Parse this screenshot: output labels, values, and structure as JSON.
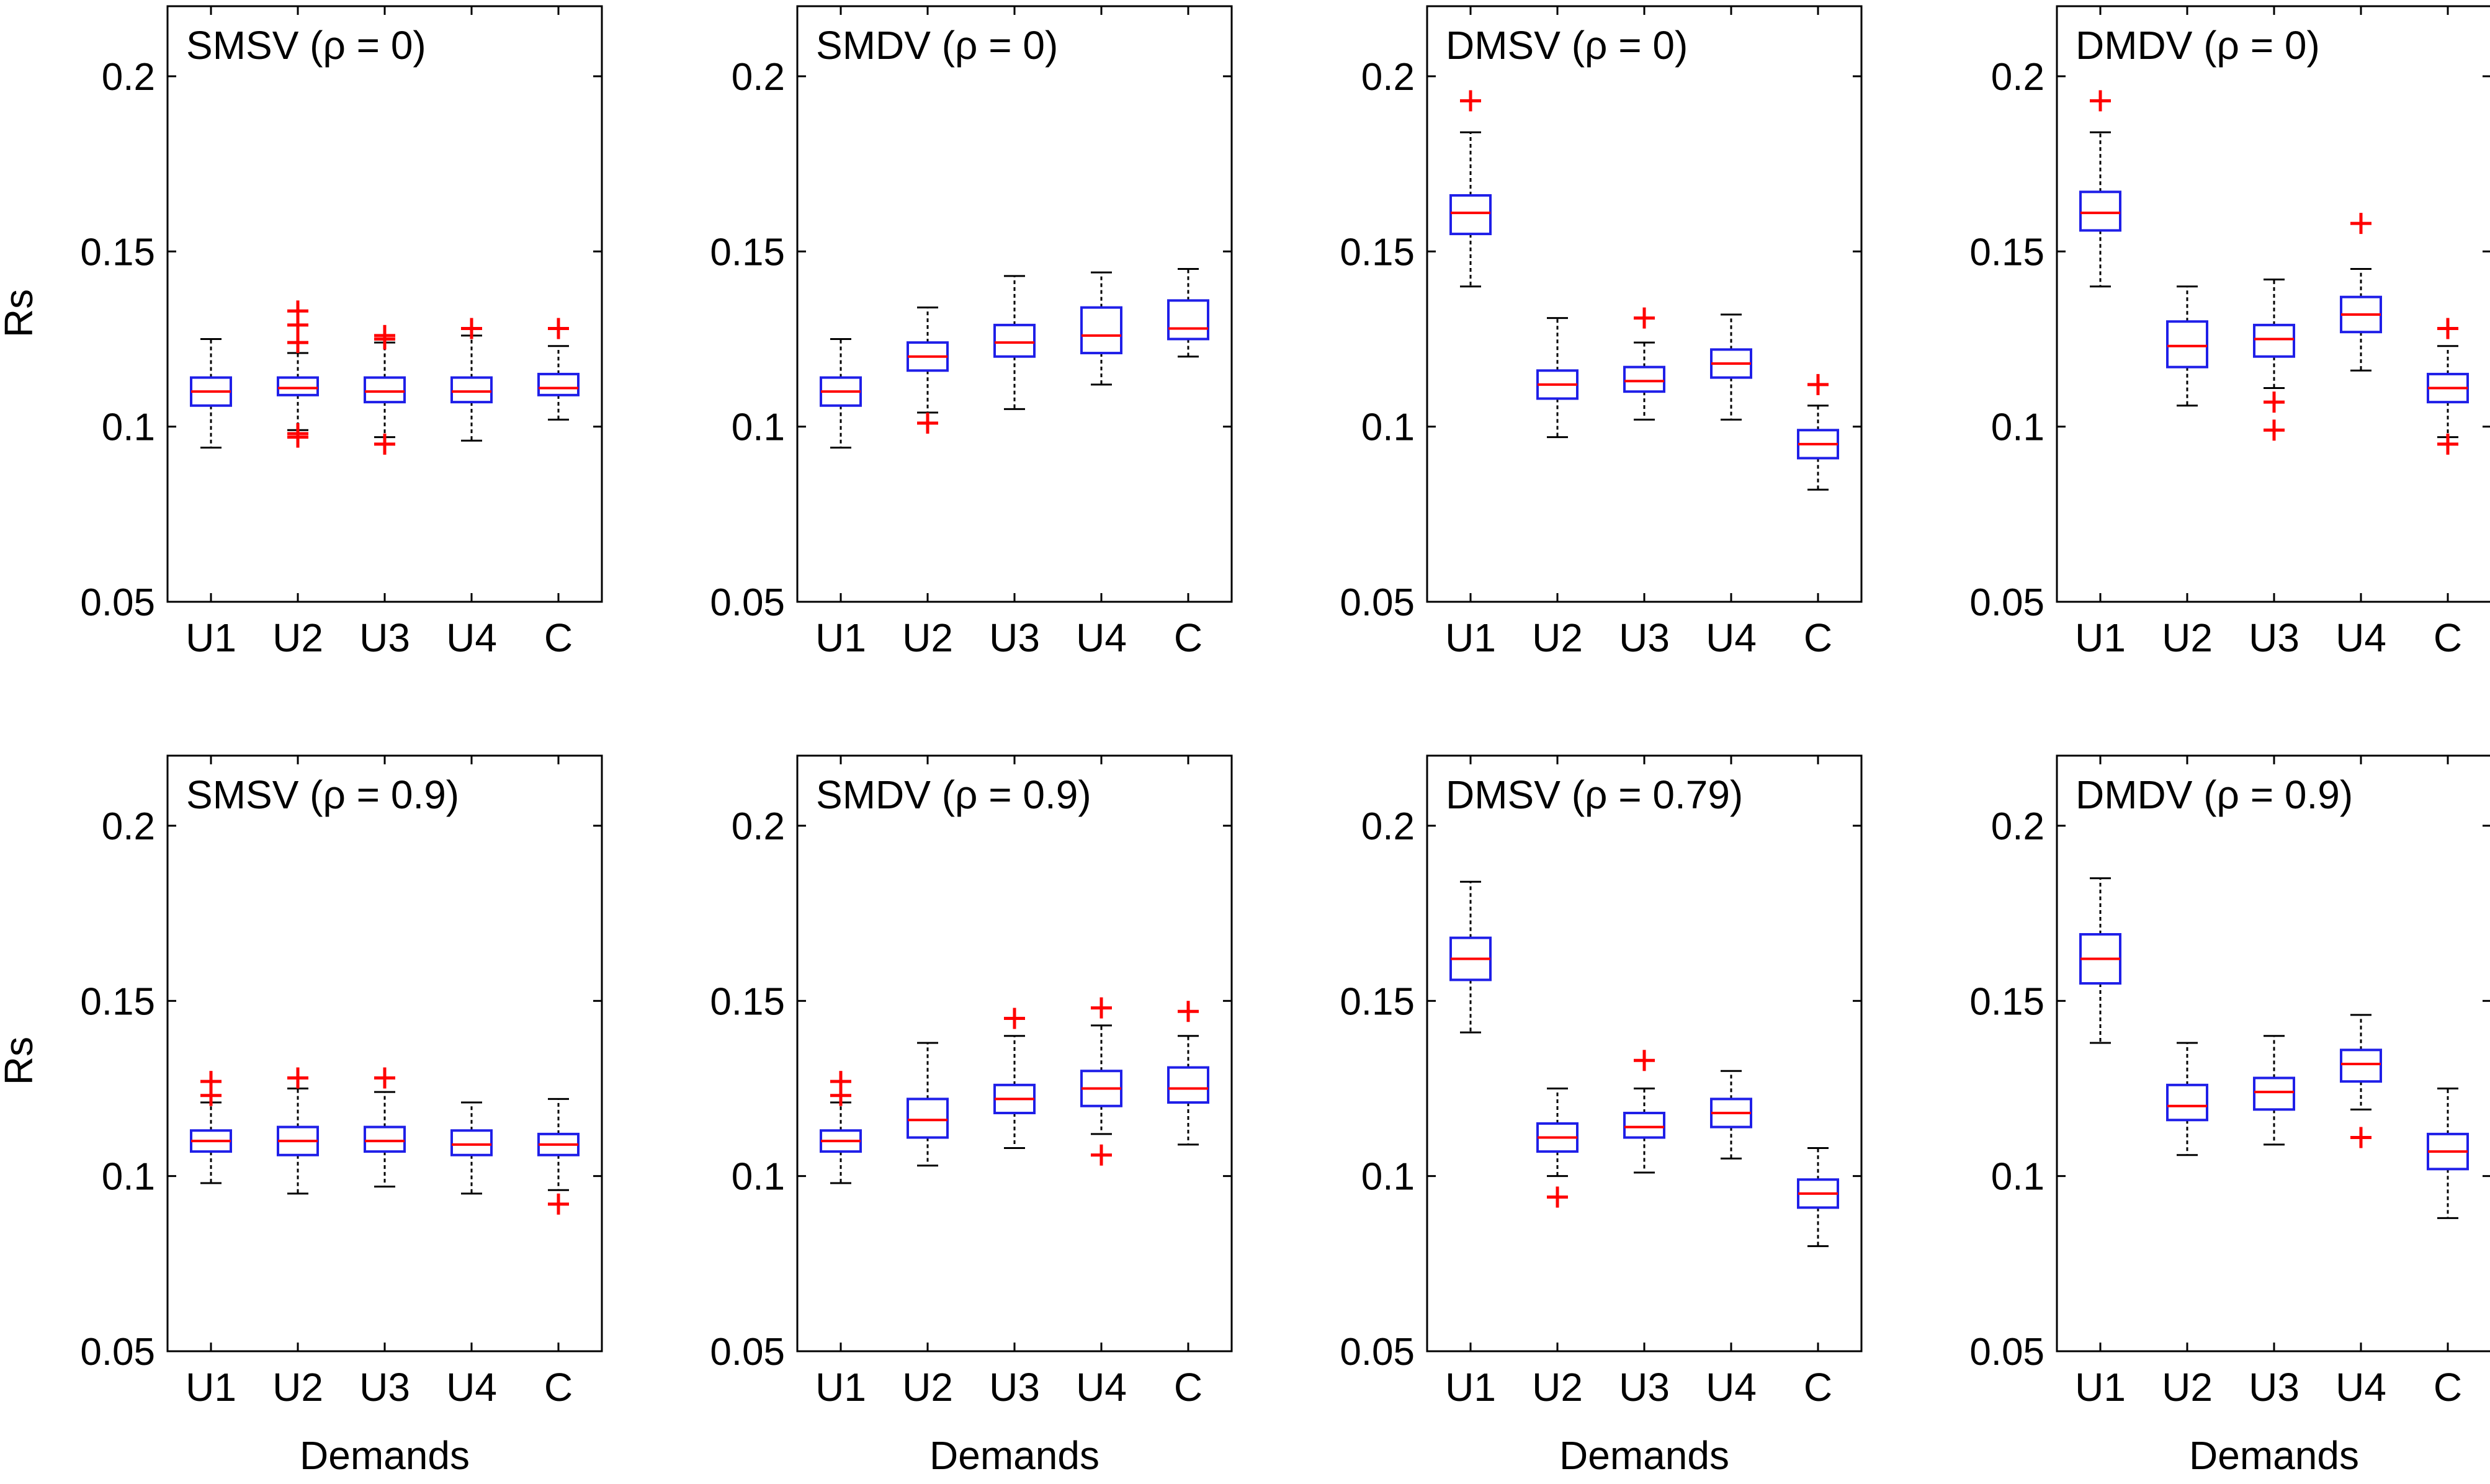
{
  "figure": {
    "y_axis_label": "Rs",
    "x_axis_label": "Demands"
  },
  "chart_data": [
    {
      "type": "boxplot",
      "title": "SMSV (ρ = 0)",
      "xlabel": "",
      "ylabel": "Rs",
      "ylim": [
        0.05,
        0.22
      ],
      "yticks": [
        "0.05",
        "0.1",
        "0.15",
        "0.2"
      ],
      "categories": [
        "U1",
        "U2",
        "U3",
        "U4",
        "C"
      ],
      "boxes": [
        {
          "cat": "U1",
          "lw": 0.094,
          "q1": 0.106,
          "med": 0.11,
          "q3": 0.114,
          "uw": 0.125,
          "outliers": []
        },
        {
          "cat": "U2",
          "lw": 0.099,
          "q1": 0.109,
          "med": 0.111,
          "q3": 0.114,
          "uw": 0.121,
          "outliers": [
            0.133,
            0.129,
            0.124,
            0.098,
            0.097
          ]
        },
        {
          "cat": "U3",
          "lw": 0.097,
          "q1": 0.107,
          "med": 0.11,
          "q3": 0.114,
          "uw": 0.124,
          "outliers": [
            0.126,
            0.125,
            0.095
          ]
        },
        {
          "cat": "U4",
          "lw": 0.096,
          "q1": 0.107,
          "med": 0.11,
          "q3": 0.114,
          "uw": 0.126,
          "outliers": [
            0.128
          ]
        },
        {
          "cat": "C",
          "lw": 0.102,
          "q1": 0.109,
          "med": 0.111,
          "q3": 0.115,
          "uw": 0.123,
          "outliers": [
            0.128
          ]
        }
      ]
    },
    {
      "type": "boxplot",
      "title": "SMDV (ρ = 0)",
      "xlabel": "",
      "ylabel": "",
      "ylim": [
        0.05,
        0.22
      ],
      "yticks": [
        "0.05",
        "0.1",
        "0.15",
        "0.2"
      ],
      "categories": [
        "U1",
        "U2",
        "U3",
        "U4",
        "C"
      ],
      "boxes": [
        {
          "cat": "U1",
          "lw": 0.094,
          "q1": 0.106,
          "med": 0.11,
          "q3": 0.114,
          "uw": 0.125,
          "outliers": []
        },
        {
          "cat": "U2",
          "lw": 0.104,
          "q1": 0.116,
          "med": 0.12,
          "q3": 0.124,
          "uw": 0.134,
          "outliers": [
            0.101
          ]
        },
        {
          "cat": "U3",
          "lw": 0.105,
          "q1": 0.12,
          "med": 0.124,
          "q3": 0.129,
          "uw": 0.143,
          "outliers": []
        },
        {
          "cat": "U4",
          "lw": 0.112,
          "q1": 0.121,
          "med": 0.126,
          "q3": 0.134,
          "uw": 0.144,
          "outliers": []
        },
        {
          "cat": "C",
          "lw": 0.12,
          "q1": 0.125,
          "med": 0.128,
          "q3": 0.136,
          "uw": 0.145,
          "outliers": []
        }
      ]
    },
    {
      "type": "boxplot",
      "title": "DMSV (ρ = 0)",
      "xlabel": "",
      "ylabel": "",
      "ylim": [
        0.05,
        0.22
      ],
      "yticks": [
        "0.05",
        "0.1",
        "0.15",
        "0.2"
      ],
      "categories": [
        "U1",
        "U2",
        "U3",
        "U4",
        "C"
      ],
      "boxes": [
        {
          "cat": "U1",
          "lw": 0.14,
          "q1": 0.155,
          "med": 0.161,
          "q3": 0.166,
          "uw": 0.184,
          "outliers": [
            0.193
          ]
        },
        {
          "cat": "U2",
          "lw": 0.097,
          "q1": 0.108,
          "med": 0.112,
          "q3": 0.116,
          "uw": 0.131,
          "outliers": []
        },
        {
          "cat": "U3",
          "lw": 0.102,
          "q1": 0.11,
          "med": 0.113,
          "q3": 0.117,
          "uw": 0.124,
          "outliers": [
            0.131
          ]
        },
        {
          "cat": "U4",
          "lw": 0.102,
          "q1": 0.114,
          "med": 0.118,
          "q3": 0.122,
          "uw": 0.132,
          "outliers": []
        },
        {
          "cat": "C",
          "lw": 0.082,
          "q1": 0.091,
          "med": 0.095,
          "q3": 0.099,
          "uw": 0.106,
          "outliers": [
            0.112
          ]
        }
      ]
    },
    {
      "type": "boxplot",
      "title": "DMDV (ρ = 0)",
      "xlabel": "",
      "ylabel": "",
      "ylim": [
        0.05,
        0.22
      ],
      "yticks": [
        "0.05",
        "0.1",
        "0.15",
        "0.2"
      ],
      "categories": [
        "U1",
        "U2",
        "U3",
        "U4",
        "C"
      ],
      "boxes": [
        {
          "cat": "U1",
          "lw": 0.14,
          "q1": 0.156,
          "med": 0.161,
          "q3": 0.167,
          "uw": 0.184,
          "outliers": [
            0.193
          ]
        },
        {
          "cat": "U2",
          "lw": 0.106,
          "q1": 0.117,
          "med": 0.123,
          "q3": 0.13,
          "uw": 0.14,
          "outliers": []
        },
        {
          "cat": "U3",
          "lw": 0.111,
          "q1": 0.12,
          "med": 0.125,
          "q3": 0.129,
          "uw": 0.142,
          "outliers": [
            0.107,
            0.099
          ]
        },
        {
          "cat": "U4",
          "lw": 0.116,
          "q1": 0.127,
          "med": 0.132,
          "q3": 0.137,
          "uw": 0.145,
          "outliers": [
            0.158
          ]
        },
        {
          "cat": "C",
          "lw": 0.097,
          "q1": 0.107,
          "med": 0.111,
          "q3": 0.115,
          "uw": 0.123,
          "outliers": [
            0.128,
            0.095
          ]
        }
      ]
    },
    {
      "type": "boxplot",
      "title": "SMSV (ρ = 0.9)",
      "xlabel": "Demands",
      "ylabel": "Rs",
      "ylim": [
        0.05,
        0.22
      ],
      "yticks": [
        "0.05",
        "0.1",
        "0.15",
        "0.2"
      ],
      "categories": [
        "U1",
        "U2",
        "U3",
        "U4",
        "C"
      ],
      "boxes": [
        {
          "cat": "U1",
          "lw": 0.098,
          "q1": 0.107,
          "med": 0.11,
          "q3": 0.113,
          "uw": 0.121,
          "outliers": [
            0.127,
            0.123
          ]
        },
        {
          "cat": "U2",
          "lw": 0.095,
          "q1": 0.106,
          "med": 0.11,
          "q3": 0.114,
          "uw": 0.125,
          "outliers": [
            0.128
          ]
        },
        {
          "cat": "U3",
          "lw": 0.097,
          "q1": 0.107,
          "med": 0.11,
          "q3": 0.114,
          "uw": 0.124,
          "outliers": [
            0.128
          ]
        },
        {
          "cat": "U4",
          "lw": 0.095,
          "q1": 0.106,
          "med": 0.109,
          "q3": 0.113,
          "uw": 0.121,
          "outliers": []
        },
        {
          "cat": "C",
          "lw": 0.096,
          "q1": 0.106,
          "med": 0.109,
          "q3": 0.112,
          "uw": 0.122,
          "outliers": [
            0.092
          ]
        }
      ]
    },
    {
      "type": "boxplot",
      "title": "SMDV (ρ = 0.9)",
      "xlabel": "Demands",
      "ylabel": "",
      "ylim": [
        0.05,
        0.22
      ],
      "yticks": [
        "0.05",
        "0.1",
        "0.15",
        "0.2"
      ],
      "categories": [
        "U1",
        "U2",
        "U3",
        "U4",
        "C"
      ],
      "boxes": [
        {
          "cat": "U1",
          "lw": 0.098,
          "q1": 0.107,
          "med": 0.11,
          "q3": 0.113,
          "uw": 0.121,
          "outliers": [
            0.127,
            0.123
          ]
        },
        {
          "cat": "U2",
          "lw": 0.103,
          "q1": 0.111,
          "med": 0.116,
          "q3": 0.122,
          "uw": 0.138,
          "outliers": []
        },
        {
          "cat": "U3",
          "lw": 0.108,
          "q1": 0.118,
          "med": 0.122,
          "q3": 0.126,
          "uw": 0.14,
          "outliers": [
            0.145
          ]
        },
        {
          "cat": "U4",
          "lw": 0.112,
          "q1": 0.12,
          "med": 0.125,
          "q3": 0.13,
          "uw": 0.143,
          "outliers": [
            0.148,
            0.106
          ]
        },
        {
          "cat": "C",
          "lw": 0.109,
          "q1": 0.121,
          "med": 0.125,
          "q3": 0.131,
          "uw": 0.14,
          "outliers": [
            0.147
          ]
        }
      ]
    },
    {
      "type": "boxplot",
      "title": "DMSV (ρ = 0.79)",
      "xlabel": "Demands",
      "ylabel": "",
      "ylim": [
        0.05,
        0.22
      ],
      "yticks": [
        "0.05",
        "0.1",
        "0.15",
        "0.2"
      ],
      "categories": [
        "U1",
        "U2",
        "U3",
        "U4",
        "C"
      ],
      "boxes": [
        {
          "cat": "U1",
          "lw": 0.141,
          "q1": 0.156,
          "med": 0.162,
          "q3": 0.168,
          "uw": 0.184,
          "outliers": []
        },
        {
          "cat": "U2",
          "lw": 0.1,
          "q1": 0.107,
          "med": 0.111,
          "q3": 0.115,
          "uw": 0.125,
          "outliers": [
            0.094
          ]
        },
        {
          "cat": "U3",
          "lw": 0.101,
          "q1": 0.111,
          "med": 0.114,
          "q3": 0.118,
          "uw": 0.125,
          "outliers": [
            0.133
          ]
        },
        {
          "cat": "U4",
          "lw": 0.105,
          "q1": 0.114,
          "med": 0.118,
          "q3": 0.122,
          "uw": 0.13,
          "outliers": []
        },
        {
          "cat": "C",
          "lw": 0.08,
          "q1": 0.091,
          "med": 0.095,
          "q3": 0.099,
          "uw": 0.108,
          "outliers": []
        }
      ]
    },
    {
      "type": "boxplot",
      "title": "DMDV (ρ = 0.9)",
      "xlabel": "Demands",
      "ylabel": "",
      "ylim": [
        0.05,
        0.22
      ],
      "yticks": [
        "0.05",
        "0.1",
        "0.15",
        "0.2"
      ],
      "categories": [
        "U1",
        "U2",
        "U3",
        "U4",
        "C"
      ],
      "boxes": [
        {
          "cat": "U1",
          "lw": 0.138,
          "q1": 0.155,
          "med": 0.162,
          "q3": 0.169,
          "uw": 0.185,
          "outliers": []
        },
        {
          "cat": "U2",
          "lw": 0.106,
          "q1": 0.116,
          "med": 0.12,
          "q3": 0.126,
          "uw": 0.138,
          "outliers": []
        },
        {
          "cat": "U3",
          "lw": 0.109,
          "q1": 0.119,
          "med": 0.124,
          "q3": 0.128,
          "uw": 0.14,
          "outliers": []
        },
        {
          "cat": "U4",
          "lw": 0.119,
          "q1": 0.127,
          "med": 0.132,
          "q3": 0.136,
          "uw": 0.146,
          "outliers": [
            0.111
          ]
        },
        {
          "cat": "C",
          "lw": 0.088,
          "q1": 0.102,
          "med": 0.107,
          "q3": 0.112,
          "uw": 0.125,
          "outliers": []
        }
      ]
    }
  ],
  "colors": {
    "box": "#1f1fe8",
    "median": "#ff0000",
    "outlier": "#ff0000",
    "whisker": "#000000",
    "axes": "#000000"
  }
}
